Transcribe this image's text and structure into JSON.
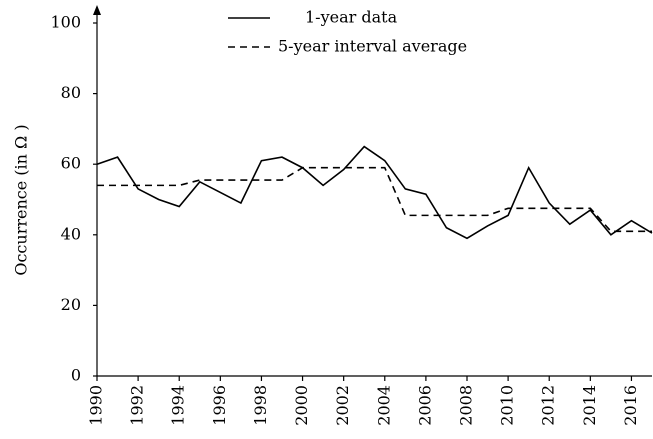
{
  "chart_data": {
    "type": "line",
    "y_label": "Occurrence (in Ω )",
    "x": [
      1990,
      1991,
      1992,
      1993,
      1994,
      1995,
      1996,
      1997,
      1998,
      1999,
      2000,
      2001,
      2002,
      2003,
      2004,
      2005,
      2006,
      2007,
      2008,
      2009,
      2010,
      2011,
      2012,
      2013,
      2014,
      2015,
      2016,
      2017
    ],
    "series": [
      {
        "name": "1-year data",
        "color": "#000000",
        "dash": false,
        "values": [
          60,
          62,
          53,
          50,
          48,
          55,
          52,
          49,
          61,
          62,
          59,
          54,
          58.5,
          65,
          61,
          53,
          51.5,
          42,
          39,
          42.5,
          45.5,
          59,
          49,
          43,
          47,
          40,
          44,
          40.5
        ]
      },
      {
        "name": "5-year interval average",
        "color": "#000000",
        "dash": true,
        "values": [
          54,
          54,
          54,
          54,
          54,
          55.5,
          55.5,
          55.5,
          55.5,
          55.5,
          59,
          59,
          59,
          59,
          59,
          45.5,
          45.5,
          45.5,
          45.5,
          45.5,
          47.5,
          47.5,
          47.5,
          47.5,
          47.5,
          41,
          41,
          41
        ]
      }
    ],
    "xlim": [
      1990,
      2017
    ],
    "xticks": [
      1990,
      1992,
      1994,
      1996,
      1998,
      2000,
      2002,
      2004,
      2006,
      2008,
      2010,
      2012,
      2014,
      2016
    ],
    "ylim": [
      0,
      100
    ],
    "yticks": [
      0,
      20,
      40,
      60,
      80,
      100
    ],
    "grid": false,
    "legend": "top"
  }
}
